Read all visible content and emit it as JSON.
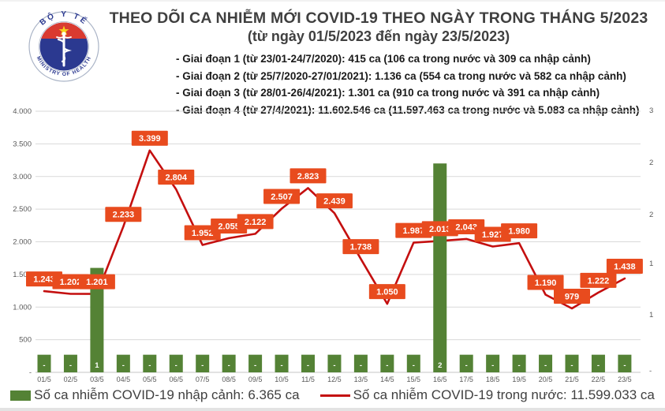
{
  "header": {
    "title": "THEO DÕI CA NHIỄM MỚI COVID-19 THEO NGÀY TRONG THÁNG 5/2023",
    "subtitle": "(từ ngày 01/5/2023 đến ngày 23/5/2023)",
    "phases": [
      "- Giai đoạn 1 (từ 23/01-24/7/2020): 415 ca (106 ca trong nước và 309 ca nhập cảnh)",
      "- Giai đoạn 2 (từ 25/7/2020-27/01/2021): 1.136 ca (554 ca trong nước và 582 ca nhập cảnh)",
      "- Giai đoạn 3 (từ 28/01-26/4/2021): 1.301 ca (910 ca trong nước và 391 ca nhập cảnh)",
      "- Giai đoạn 4 (từ 27/4/2021): 11.602.546 ca (11.597.463 ca trong nước và 5.083 ca nhập cảnh)"
    ]
  },
  "logo": {
    "top_text": "BỘ Y TẾ",
    "bottom_text": "MINISTRY OF HEALTH",
    "colors": {
      "ring": "#a9b3c6",
      "blue": "#2b3990",
      "red": "#d93a30",
      "star": "#f8d31c"
    }
  },
  "chart_data": {
    "type": "line",
    "title": "THEO DÕI CA NHIỄM MỚI COVID-19 THEO NGÀY TRONG THÁNG 5/2023",
    "categories": [
      "01/5",
      "02/5",
      "03/5",
      "04/5",
      "05/5",
      "06/5",
      "07/5",
      "08/5",
      "09/5",
      "10/5",
      "11/5",
      "12/5",
      "13/5",
      "14/5",
      "15/5",
      "16/5",
      "17/5",
      "18/5",
      "19/5",
      "20/5",
      "21/5",
      "22/5",
      "23/5"
    ],
    "series": [
      {
        "name": "Số ca nhiễm COVID-19 trong nước",
        "type": "line",
        "color": "#c40f0f",
        "values": [
          1243,
          1202,
          1201,
          2233,
          3399,
          2804,
          1952,
          2055,
          2122,
          2507,
          2823,
          2439,
          1738,
          1050,
          1987,
          2013,
          2043,
          1927,
          1980,
          1190,
          979,
          1222,
          1438
        ],
        "labels": [
          "1.243",
          "1.202",
          "1.201",
          "2.233",
          "3.399",
          "2.804",
          "1.952",
          "2.055",
          "2.122",
          "2.507",
          "2.823",
          "2.439",
          "1.738",
          "1.050",
          "1.987",
          "2.013",
          "2.043",
          "1.927",
          "1.980",
          "1.190",
          "979",
          "1.222",
          "1.438"
        ],
        "label_bg": "#e84b1e",
        "label_color": "#ffffff"
      },
      {
        "name": "Số ca nhiễm COVID-19 nhập cảnh",
        "type": "bar",
        "color": "#548235",
        "values": [
          270,
          270,
          1600,
          270,
          270,
          270,
          270,
          270,
          270,
          270,
          270,
          270,
          270,
          270,
          270,
          3200,
          270,
          270,
          270,
          270,
          270,
          270,
          270
        ],
        "bar_labels": [
          "-",
          "-",
          "1",
          "-",
          "-",
          "-",
          "-",
          "-",
          "-",
          "-",
          "-",
          "-",
          "-",
          "-",
          "-",
          "2",
          "-",
          "-",
          "-",
          "-",
          "-",
          "-",
          "-"
        ],
        "label_color": "#ffffff"
      }
    ],
    "left_axis": {
      "tick_labels": [
        "4.000",
        "3.500",
        "3.000",
        "2.500",
        "2.000",
        "1.500",
        "1.000",
        "500",
        "-"
      ],
      "tick_values": [
        4000,
        3500,
        3000,
        2500,
        2000,
        1500,
        1000,
        500,
        0
      ],
      "min": 0,
      "max": 4000
    },
    "right_axis": {
      "tick_labels": [
        "3",
        "2",
        "2",
        "1",
        "1",
        "-"
      ]
    },
    "grid": true,
    "grid_color": "#d9d9d9",
    "axis_text_color": "#595959",
    "legend_position": "bottom"
  },
  "legend": {
    "items": [
      {
        "label": "Số ca nhiễm COVID-19 nhập cảnh: 6.365 ca",
        "swatch": "bar",
        "color": "#548235"
      },
      {
        "label": "Số ca nhiễm COVID-19 trong nước: 11.599.033 ca",
        "swatch": "line",
        "color": "#c40f0f"
      }
    ]
  }
}
